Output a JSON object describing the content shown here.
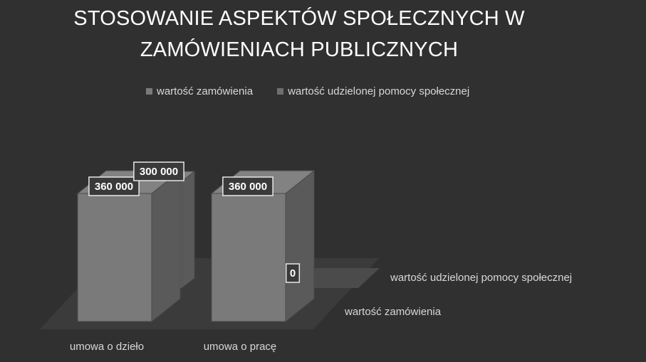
{
  "chart_data": {
    "type": "bar",
    "title_lines": [
      "STOSOWANIE ASPEKTÓW SPOŁECZNYCH W",
      "ZAMÓWIENIACH PUBLICZNYCH"
    ],
    "categories": [
      "umowa o dzieło",
      "umowa o pracę"
    ],
    "series": [
      {
        "name": "wartość zamówienia",
        "values": [
          360000,
          360000
        ],
        "labels": [
          "360 000",
          "360 000"
        ],
        "color": "#7a7a7a"
      },
      {
        "name": "wartość  udzielonej pomocy społecznej",
        "values": [
          300000,
          0
        ],
        "labels": [
          "300 000",
          "0"
        ],
        "color": "#6e6e6e"
      }
    ],
    "depth_labels": [
      "wartość zamówienia",
      "wartość  udzielonej pomocy społecznej"
    ],
    "ylim": [
      0,
      360000
    ],
    "grid": false,
    "legend": "top",
    "background": "#303030"
  }
}
